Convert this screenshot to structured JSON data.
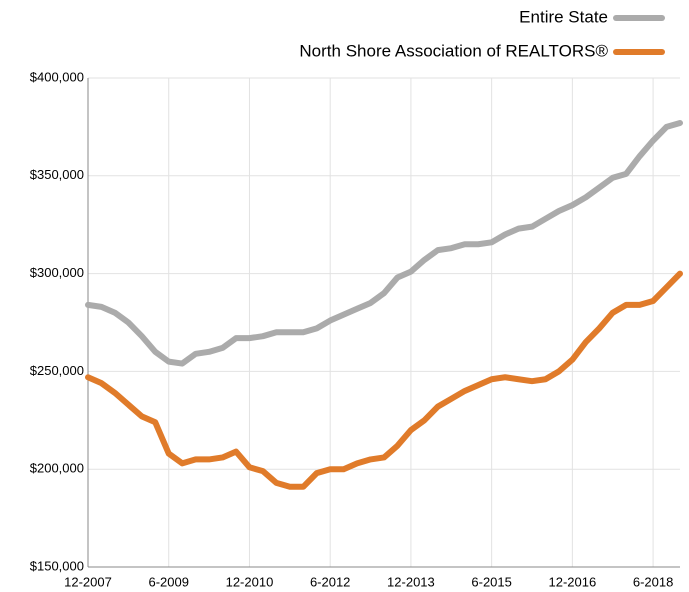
{
  "chart_data": {
    "type": "line",
    "categories": [
      "12-2007",
      null,
      null,
      null,
      null,
      null,
      "6-2009",
      null,
      null,
      null,
      null,
      null,
      "12-2010",
      null,
      null,
      null,
      null,
      null,
      "6-2012",
      null,
      null,
      null,
      null,
      null,
      "12-2013",
      null,
      null,
      null,
      null,
      null,
      "6-2015",
      null,
      null,
      null,
      null,
      null,
      "12-2016",
      null,
      null,
      null,
      null,
      null,
      "6-2018",
      null,
      null
    ],
    "series": [
      {
        "name": "Entire State",
        "color": "#ababab",
        "values": [
          284000,
          283000,
          280000,
          275000,
          268000,
          260000,
          255000,
          254000,
          259000,
          260000,
          262000,
          267000,
          267000,
          268000,
          270000,
          270000,
          270000,
          272000,
          276000,
          279000,
          282000,
          285000,
          290000,
          298000,
          301000,
          307000,
          312000,
          313000,
          315000,
          315000,
          316000,
          320000,
          323000,
          324000,
          328000,
          332000,
          335000,
          339000,
          344000,
          349000,
          351000,
          360000,
          368000,
          375000,
          377000
        ]
      },
      {
        "name": "North Shore Association of REALTORS®",
        "color": "#e07b2a",
        "values": [
          247000,
          244000,
          239000,
          233000,
          227000,
          224000,
          208000,
          203000,
          205000,
          205000,
          206000,
          209000,
          201000,
          199000,
          193000,
          191000,
          191000,
          198000,
          200000,
          200000,
          203000,
          205000,
          206000,
          212000,
          220000,
          225000,
          232000,
          236000,
          240000,
          243000,
          246000,
          247000,
          246000,
          245000,
          246000,
          250000,
          256000,
          265000,
          272000,
          280000,
          284000,
          284000,
          286000,
          293000,
          300000
        ]
      }
    ],
    "ylim": [
      150000,
      400000
    ],
    "yticks": [
      {
        "value": 150000,
        "label": "$150,000"
      },
      {
        "value": 200000,
        "label": "$200,000"
      },
      {
        "value": 250000,
        "label": "$250,000"
      },
      {
        "value": 300000,
        "label": "$300,000"
      },
      {
        "value": 350000,
        "label": "$350,000"
      },
      {
        "value": 400000,
        "label": "$400,000"
      }
    ],
    "grid": true,
    "legend": "top-right"
  }
}
